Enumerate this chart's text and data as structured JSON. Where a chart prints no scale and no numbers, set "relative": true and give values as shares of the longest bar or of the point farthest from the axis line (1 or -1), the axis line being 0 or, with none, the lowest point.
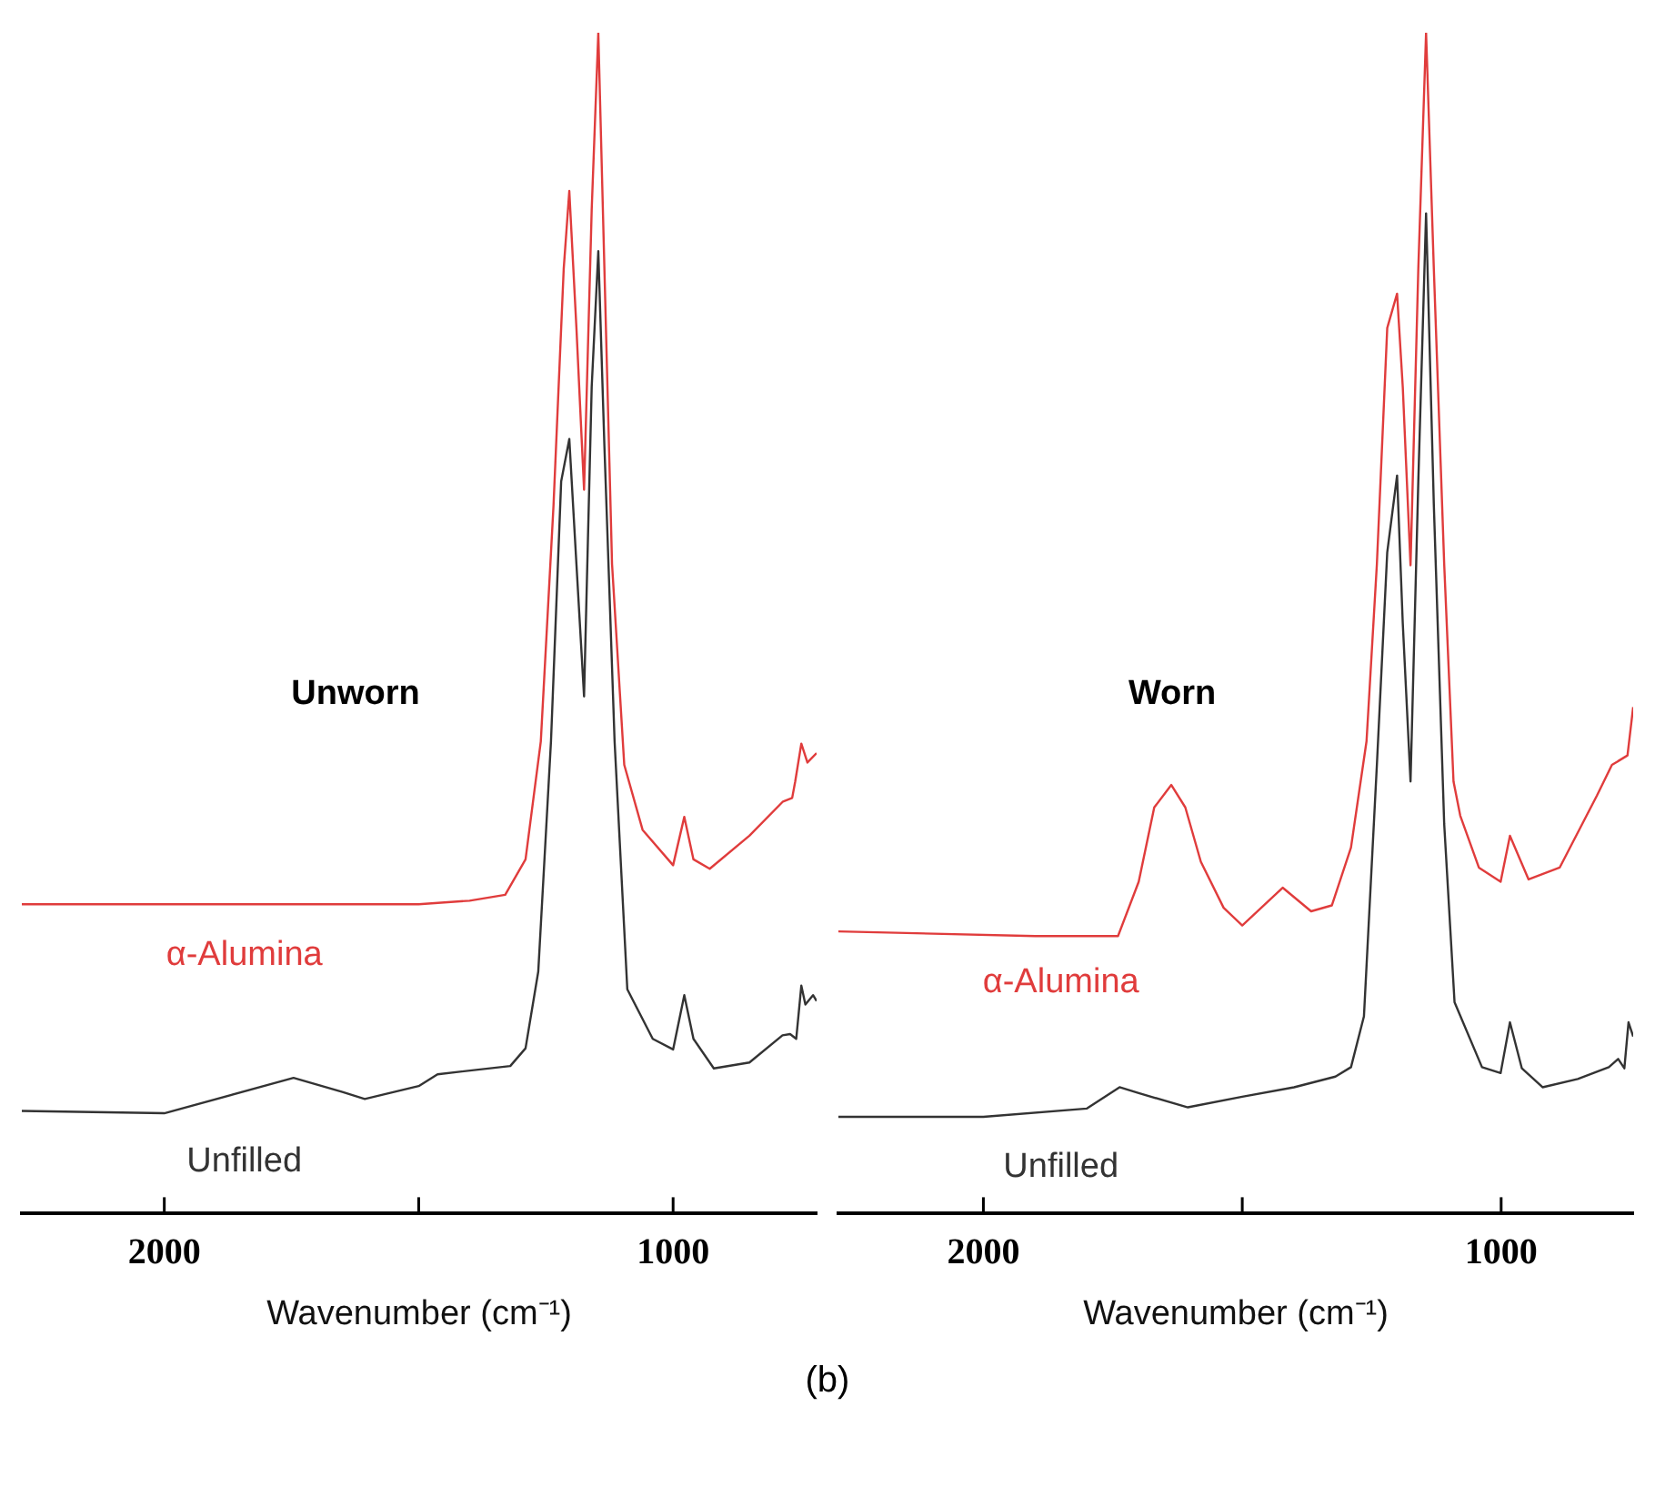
{
  "chart_data": [
    {
      "type": "line",
      "annotations": [
        "Unworn"
      ],
      "xlabel": "Wavenumber (cm⁻¹)",
      "relative": true,
      "xlim": [
        2280,
        718
      ],
      "xticks": [
        {
          "value": 2000,
          "label": "2000"
        },
        {
          "value": 1500,
          "label": null
        },
        {
          "value": 1000,
          "label": "1000"
        }
      ],
      "legend": false,
      "grid": false,
      "marker": "none",
      "series": [
        {
          "name": "α-Alumina",
          "color": "#e03c3c",
          "x": [
            2280,
            1800,
            1500,
            1400,
            1330,
            1290,
            1260,
            1235,
            1215,
            1204,
            1190,
            1175,
            1160,
            1147,
            1135,
            1120,
            1096,
            1060,
            1000,
            978,
            960,
            928,
            850,
            784,
            766,
            760,
            748,
            736,
            718
          ],
          "values": [
            0.262,
            0.262,
            0.262,
            0.265,
            0.27,
            0.3,
            0.4,
            0.6,
            0.8,
            0.866,
            0.75,
            0.613,
            0.85,
            1.0,
            0.8,
            0.55,
            0.38,
            0.325,
            0.295,
            0.336,
            0.3,
            0.292,
            0.32,
            0.349,
            0.352,
            0.366,
            0.398,
            0.382,
            0.39
          ]
        },
        {
          "name": "Unfilled",
          "color": "#333333",
          "x": [
            2280,
            2000,
            1746,
            1650,
            1606,
            1500,
            1463,
            1320,
            1290,
            1265,
            1240,
            1220,
            1204,
            1190,
            1175,
            1160,
            1147,
            1135,
            1115,
            1090,
            1040,
            1000,
            978,
            960,
            920,
            850,
            785,
            770,
            758,
            748,
            740,
            725,
            718
          ],
          "values": [
            0.087,
            0.085,
            0.115,
            0.103,
            0.097,
            0.108,
            0.118,
            0.125,
            0.14,
            0.205,
            0.4,
            0.62,
            0.656,
            0.55,
            0.438,
            0.7,
            0.815,
            0.65,
            0.4,
            0.19,
            0.148,
            0.139,
            0.185,
            0.148,
            0.123,
            0.128,
            0.151,
            0.152,
            0.148,
            0.193,
            0.177,
            0.185,
            0.18
          ]
        }
      ]
    },
    {
      "type": "line",
      "annotations": [
        "Worn"
      ],
      "xlabel": "Wavenumber (cm⁻¹)",
      "relative": true,
      "xlim": [
        2280,
        745
      ],
      "xticks": [
        {
          "value": 2000,
          "label": "2000"
        },
        {
          "value": 1500,
          "label": null
        },
        {
          "value": 1000,
          "label": "1000"
        }
      ],
      "legend": false,
      "grid": false,
      "marker": "none",
      "series": [
        {
          "name": "α-Alumina",
          "color": "#e03c3c",
          "x": [
            2280,
            1900,
            1740,
            1700,
            1670,
            1637,
            1610,
            1580,
            1536,
            1500,
            1422,
            1367,
            1327,
            1290,
            1260,
            1240,
            1220,
            1201,
            1190,
            1175,
            1160,
            1145,
            1130,
            1110,
            1092,
            1079,
            1043,
            1001,
            983,
            947,
            887,
            815,
            786,
            756,
            745
          ],
          "values": [
            0.239,
            0.235,
            0.235,
            0.281,
            0.344,
            0.363,
            0.344,
            0.298,
            0.259,
            0.244,
            0.276,
            0.256,
            0.261,
            0.31,
            0.4,
            0.55,
            0.75,
            0.779,
            0.7,
            0.549,
            0.8,
            1.0,
            0.8,
            0.55,
            0.366,
            0.337,
            0.293,
            0.281,
            0.32,
            0.283,
            0.293,
            0.354,
            0.38,
            0.388,
            0.429
          ]
        },
        {
          "name": "Unfilled",
          "color": "#333333",
          "x": [
            2280,
            2000,
            1800,
            1737,
            1700,
            1605,
            1500,
            1400,
            1320,
            1290,
            1265,
            1240,
            1220,
            1201,
            1190,
            1175,
            1160,
            1145,
            1130,
            1110,
            1090,
            1037,
            1001,
            983,
            960,
            920,
            852,
            792,
            774,
            762,
            754,
            745
          ],
          "values": [
            0.082,
            0.082,
            0.089,
            0.107,
            0.102,
            0.09,
            0.099,
            0.107,
            0.116,
            0.124,
            0.167,
            0.38,
            0.56,
            0.625,
            0.5,
            0.366,
            0.62,
            0.847,
            0.6,
            0.33,
            0.179,
            0.124,
            0.119,
            0.162,
            0.123,
            0.107,
            0.114,
            0.124,
            0.131,
            0.123,
            0.162,
            0.15
          ]
        }
      ]
    },
    {
      "type": "other",
      "annotations": [
        "(b)"
      ]
    }
  ]
}
